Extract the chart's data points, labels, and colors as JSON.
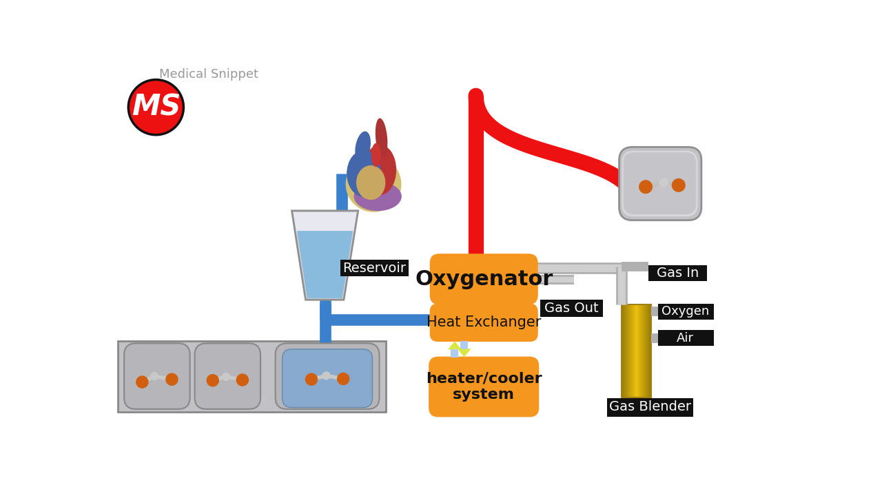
{
  "bg": "#FFFFFF",
  "orange": "#F5971E",
  "black": "#111111",
  "white": "#FFFFFF",
  "red": "#EE1111",
  "blue": "#3B80CC",
  "gray_cup": "#C0C0C4",
  "gray_cup_edge": "#909090",
  "gray_funnel": "#C8C8CC",
  "water_blue": "#7AADD0",
  "water_light": "#AACCDD",
  "gold1": "#E8B820",
  "gold2": "#F5D060",
  "gold3": "#C89010",
  "pipe_gray": "#AAAAAA",
  "pipe_gray2": "#888888",
  "light_blue_arrow": "#B0CCEE",
  "yg_arrow": "#D8E840",
  "atom_orange": "#D06010",
  "atom_gray": "#C8C8C8",
  "logo_red": "#DD1111",
  "text_gray": "#999999",
  "tray_gray": "#C5C5C8",
  "oxygenator_label": "Oxygenator",
  "heat_exchanger_label": "Heat Exchanger",
  "heater_cooler_label": "heater/cooler\nsystem",
  "reservoir_label": "Reservoir",
  "gas_in_label": "Gas In",
  "gas_out_label": "Gas Out",
  "oxygen_label": "Oxygen",
  "air_label": "Air",
  "gas_blender_label": "Gas Blender",
  "medical_snippet_label": "Medical Snippet"
}
